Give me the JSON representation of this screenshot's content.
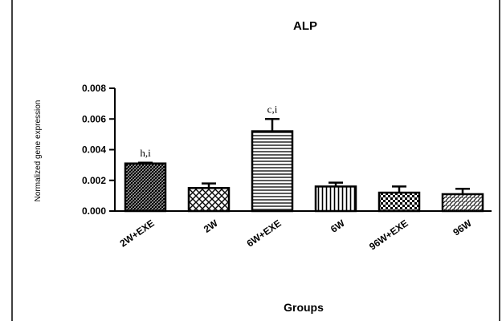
{
  "chart_data": {
    "type": "bar",
    "title": "ALP",
    "xlabel": "Groups",
    "ylabel": "Normalized gene expression",
    "ylim": [
      0,
      0.008
    ],
    "yticks": [
      "0.000",
      "0.002",
      "0.004",
      "0.006",
      "0.008"
    ],
    "ytick_values": [
      0,
      0.002,
      0.004,
      0.006,
      0.008
    ],
    "categories": [
      "2W+EXE",
      "2W",
      "6W+EXE",
      "6W",
      "96W+EXE",
      "96W"
    ],
    "values": [
      0.0031,
      0.0015,
      0.0052,
      0.0016,
      0.0012,
      0.0011
    ],
    "errors": [
      5e-05,
      0.0003,
      0.0008,
      0.00025,
      0.0004,
      0.00035
    ],
    "annotations": [
      "h,i",
      "",
      "c,i",
      "",
      "",
      ""
    ],
    "patterns": [
      "dense-hatch",
      "crosshatch",
      "horizontal-lines",
      "vertical-lines",
      "checker",
      "diagonal-dots"
    ],
    "grid": false,
    "legend": "none",
    "bar_color": "#000000"
  }
}
